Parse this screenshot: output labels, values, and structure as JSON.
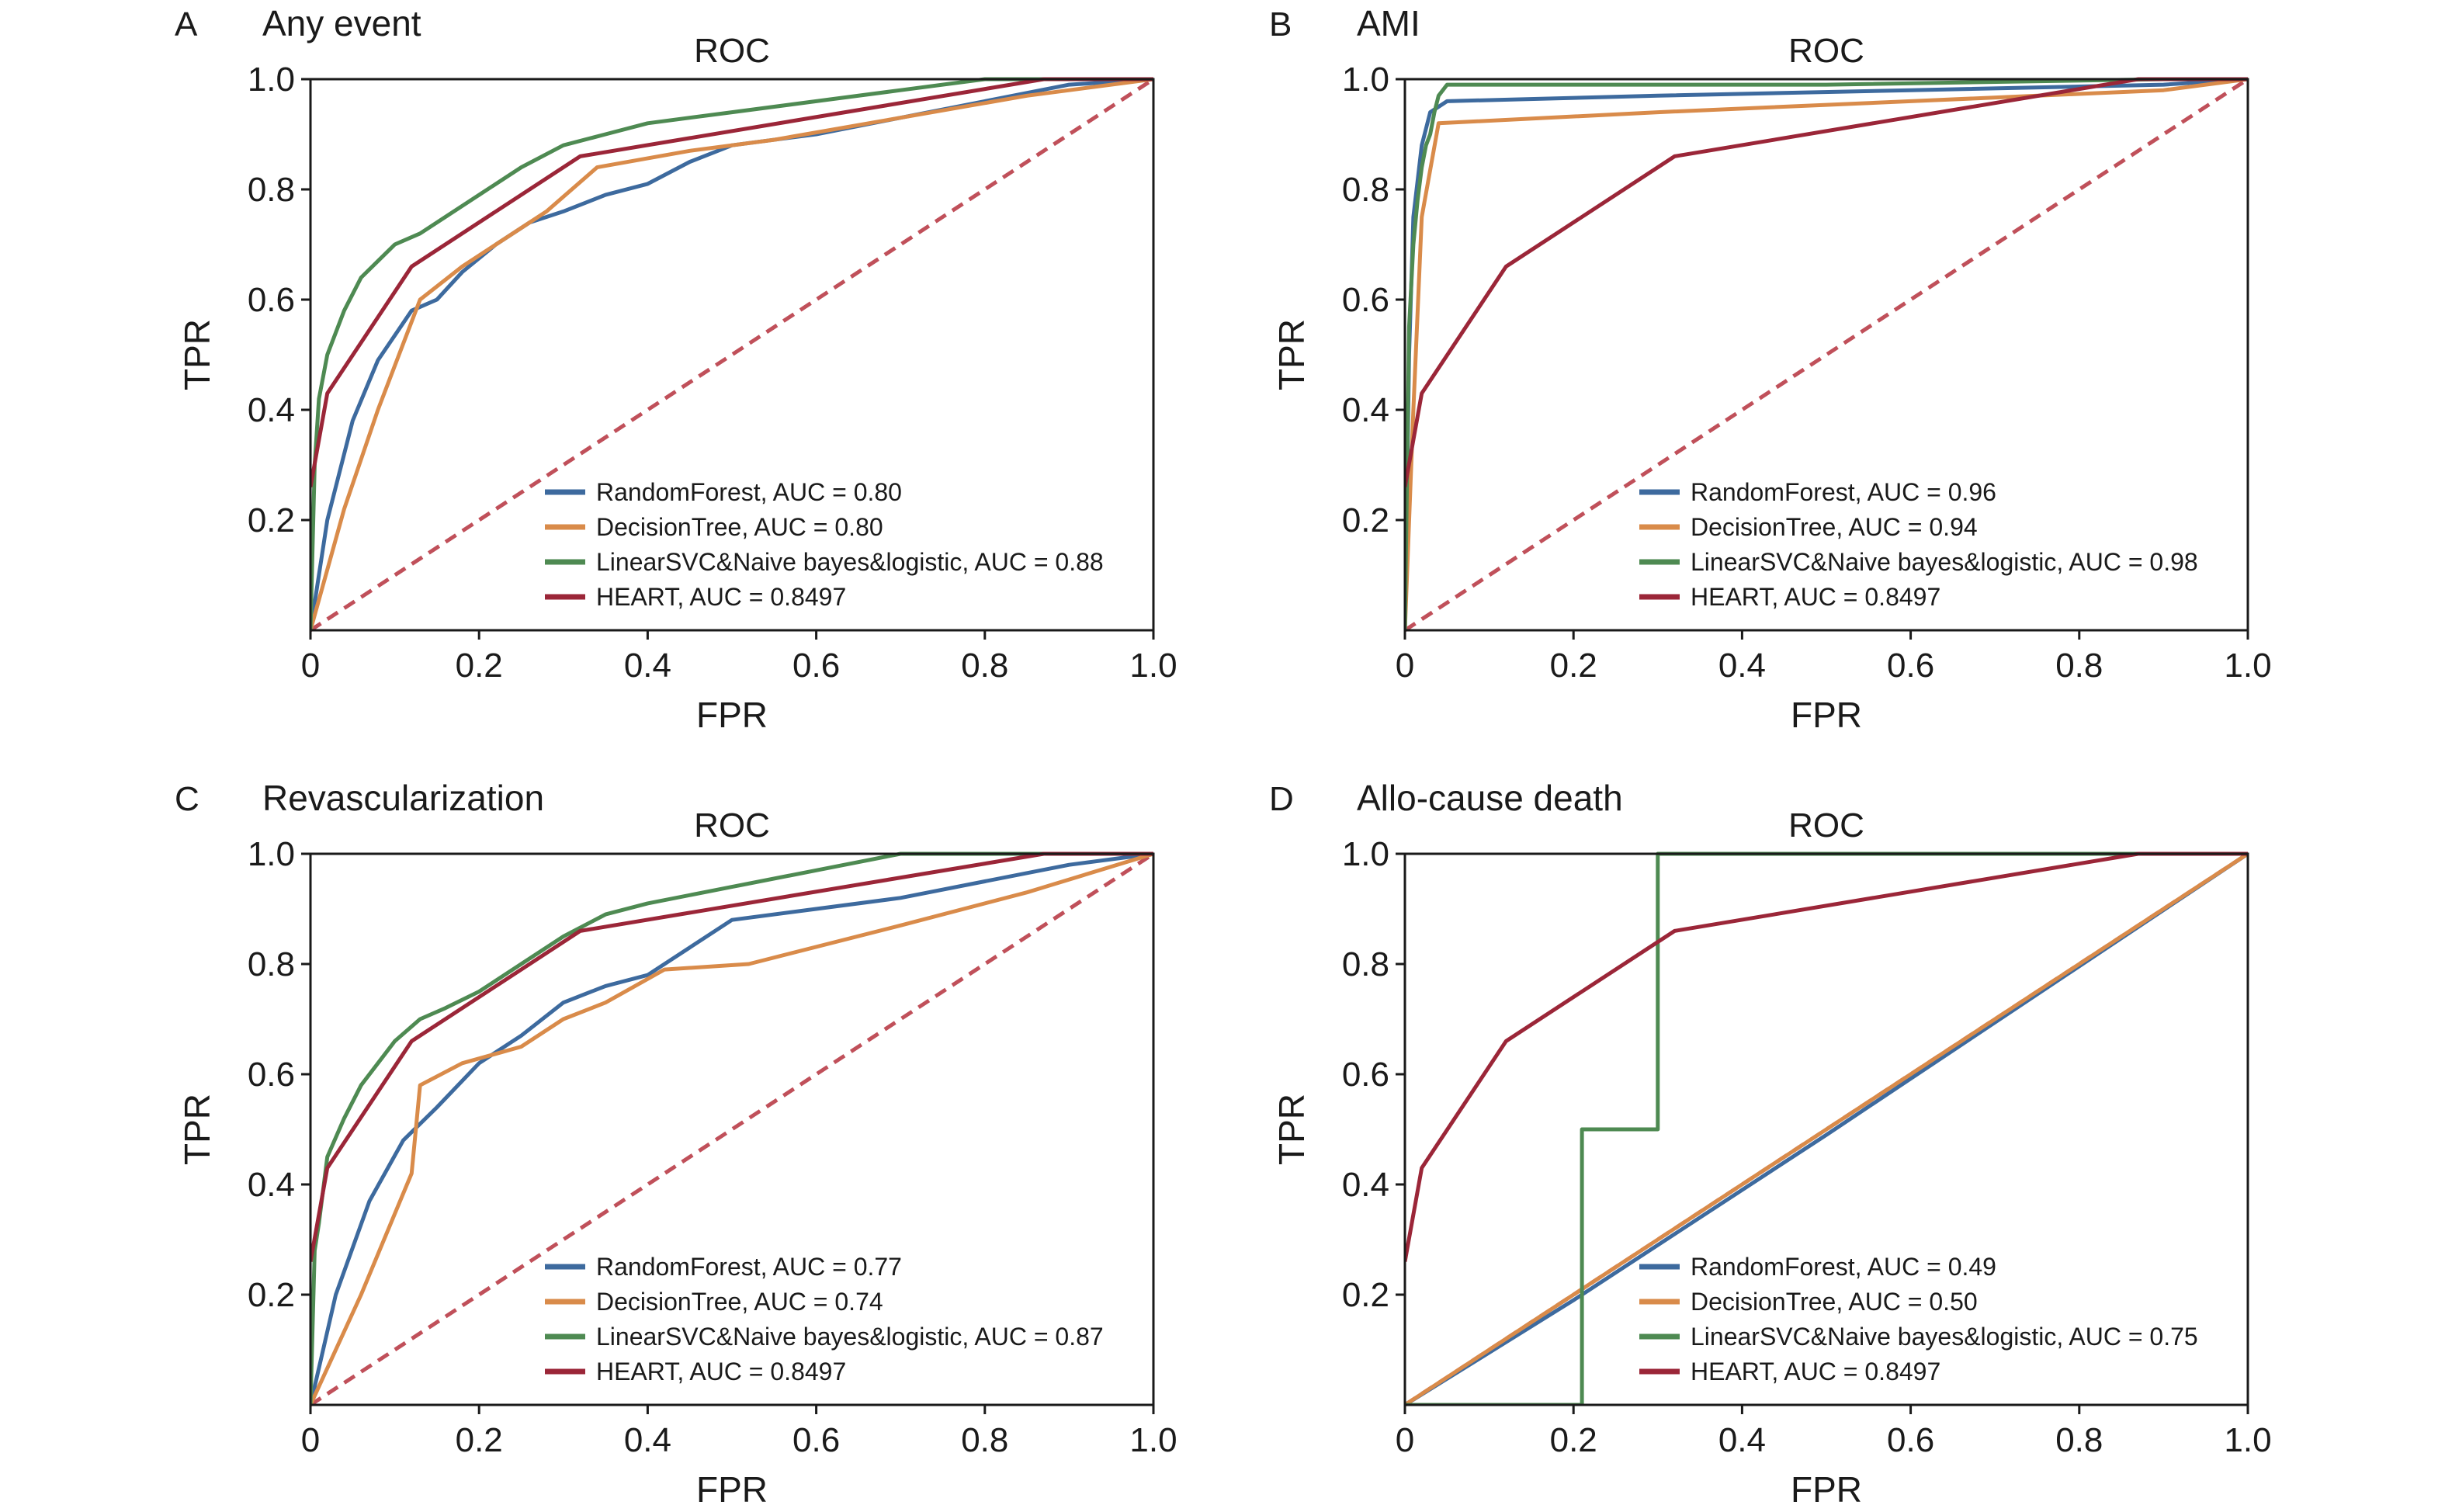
{
  "panels": [
    {
      "letter": "A",
      "heading": "Any event"
    },
    {
      "letter": "B",
      "heading": "AMI"
    },
    {
      "letter": "C",
      "heading": "Revascularization"
    },
    {
      "letter": "D",
      "heading": "Allo-cause death"
    }
  ],
  "colors": {
    "randomforest": "#3d6a9e",
    "decisiontree": "#d98b4a",
    "linearsvc": "#4e8a52",
    "heart": "#9b2638",
    "diagonal": "#c0505a",
    "axis": "#1a1a1a"
  },
  "chart_data": [
    {
      "type": "line",
      "title": "ROC",
      "xlabel": "FPR",
      "ylabel": "TPR",
      "xlim": [
        0,
        1
      ],
      "ylim": [
        0,
        1
      ],
      "xticks": [
        "0",
        "0.2",
        "0.4",
        "0.6",
        "0.8",
        "1.0"
      ],
      "yticks": [
        "0.2",
        "0.4",
        "0.6",
        "0.8",
        "1.0"
      ],
      "legend_position": "bottom-right",
      "series": [
        {
          "name": "RandomForest, AUC = 0.80",
          "color": "#3d6a9e",
          "x": [
            0,
            0.02,
            0.05,
            0.08,
            0.12,
            0.15,
            0.18,
            0.22,
            0.26,
            0.3,
            0.35,
            0.4,
            0.45,
            0.5,
            0.6,
            0.7,
            0.8,
            0.9,
            1.0
          ],
          "y": [
            0,
            0.2,
            0.38,
            0.49,
            0.58,
            0.6,
            0.65,
            0.7,
            0.74,
            0.76,
            0.79,
            0.81,
            0.85,
            0.88,
            0.9,
            0.93,
            0.96,
            0.99,
            1.0
          ]
        },
        {
          "name": "DecisionTree, AUC = 0.80",
          "color": "#d98b4a",
          "x": [
            0,
            0.04,
            0.08,
            0.13,
            0.18,
            0.22,
            0.28,
            0.34,
            0.45,
            0.55,
            0.7,
            0.85,
            1.0
          ],
          "y": [
            0,
            0.22,
            0.4,
            0.6,
            0.66,
            0.7,
            0.76,
            0.84,
            0.87,
            0.89,
            0.93,
            0.97,
            1.0
          ]
        },
        {
          "name": "LinearSVC&Naive bayes&logistic, AUC = 0.88",
          "color": "#4e8a52",
          "x": [
            0,
            0.005,
            0.01,
            0.02,
            0.04,
            0.06,
            0.08,
            0.1,
            0.13,
            0.16,
            0.2,
            0.25,
            0.3,
            0.35,
            0.4,
            0.5,
            0.6,
            0.7,
            0.8,
            0.9,
            1.0
          ],
          "y": [
            0,
            0.3,
            0.42,
            0.5,
            0.58,
            0.64,
            0.67,
            0.7,
            0.72,
            0.75,
            0.79,
            0.84,
            0.88,
            0.9,
            0.92,
            0.94,
            0.96,
            0.98,
            1.0,
            1.0,
            1.0
          ]
        },
        {
          "name": "HEART, AUC = 0.8497",
          "color": "#9b2638",
          "x": [
            0,
            0.02,
            0.12,
            0.32,
            0.87,
            1.0
          ],
          "y": [
            0.26,
            0.43,
            0.66,
            0.86,
            1.0,
            1.0
          ]
        }
      ]
    },
    {
      "type": "line",
      "title": "ROC",
      "xlabel": "FPR",
      "ylabel": "TPR",
      "xlim": [
        0,
        1
      ],
      "ylim": [
        0,
        1
      ],
      "xticks": [
        "0",
        "0.2",
        "0.4",
        "0.6",
        "0.8",
        "1.0"
      ],
      "yticks": [
        "0.2",
        "0.4",
        "0.6",
        "0.8",
        "1.0"
      ],
      "legend_position": "bottom-right",
      "series": [
        {
          "name": "RandomForest, AUC = 0.96",
          "color": "#3d6a9e",
          "x": [
            0,
            0.005,
            0.01,
            0.02,
            0.03,
            0.05,
            0.3,
            0.6,
            0.9,
            1.0
          ],
          "y": [
            0,
            0.5,
            0.75,
            0.88,
            0.94,
            0.96,
            0.97,
            0.98,
            0.99,
            1.0
          ]
        },
        {
          "name": "DecisionTree, AUC = 0.94",
          "color": "#d98b4a",
          "x": [
            0,
            0.01,
            0.02,
            0.04,
            0.3,
            0.6,
            0.9,
            1.0
          ],
          "y": [
            0,
            0.4,
            0.75,
            0.92,
            0.94,
            0.96,
            0.98,
            1.0
          ]
        },
        {
          "name": "LinearSVC&Naive bayes&logistic, AUC = 0.98",
          "color": "#4e8a52",
          "x": [
            0,
            0.005,
            0.01,
            0.015,
            0.02,
            0.025,
            0.03,
            0.035,
            0.04,
            0.05,
            0.5,
            0.9,
            1.0
          ],
          "y": [
            0,
            0.55,
            0.7,
            0.78,
            0.84,
            0.88,
            0.9,
            0.94,
            0.97,
            0.99,
            0.99,
            1.0,
            1.0
          ]
        },
        {
          "name": "HEART, AUC = 0.8497",
          "color": "#9b2638",
          "x": [
            0,
            0.02,
            0.12,
            0.32,
            0.87,
            1.0
          ],
          "y": [
            0.26,
            0.43,
            0.66,
            0.86,
            1.0,
            1.0
          ]
        }
      ]
    },
    {
      "type": "line",
      "title": "ROC",
      "xlabel": "FPR",
      "ylabel": "TPR",
      "xlim": [
        0,
        1
      ],
      "ylim": [
        0,
        1
      ],
      "xticks": [
        "0",
        "0.2",
        "0.4",
        "0.6",
        "0.8",
        "1.0"
      ],
      "yticks": [
        "0.2",
        "0.4",
        "0.6",
        "0.8",
        "1.0"
      ],
      "legend_position": "bottom-right",
      "series": [
        {
          "name": "RandomForest, AUC = 0.77",
          "color": "#3d6a9e",
          "x": [
            0,
            0.03,
            0.07,
            0.11,
            0.15,
            0.2,
            0.25,
            0.3,
            0.35,
            0.4,
            0.45,
            0.5,
            0.6,
            0.7,
            0.8,
            0.9,
            1.0
          ],
          "y": [
            0,
            0.2,
            0.37,
            0.48,
            0.54,
            0.62,
            0.67,
            0.73,
            0.76,
            0.78,
            0.83,
            0.88,
            0.9,
            0.92,
            0.95,
            0.98,
            1.0
          ]
        },
        {
          "name": "DecisionTree, AUC = 0.74",
          "color": "#d98b4a",
          "x": [
            0,
            0.06,
            0.12,
            0.13,
            0.18,
            0.25,
            0.3,
            0.35,
            0.42,
            0.52,
            0.7,
            0.85,
            1.0
          ],
          "y": [
            0,
            0.2,
            0.42,
            0.58,
            0.62,
            0.65,
            0.7,
            0.73,
            0.79,
            0.8,
            0.87,
            0.93,
            1.0
          ]
        },
        {
          "name": "LinearSVC&Naive bayes&logistic, AUC = 0.87",
          "color": "#4e8a52",
          "x": [
            0,
            0.005,
            0.01,
            0.02,
            0.04,
            0.06,
            0.08,
            0.1,
            0.13,
            0.16,
            0.2,
            0.25,
            0.3,
            0.35,
            0.4,
            0.5,
            0.6,
            0.7,
            0.8,
            1.0
          ],
          "y": [
            0,
            0.28,
            0.33,
            0.45,
            0.52,
            0.58,
            0.62,
            0.66,
            0.7,
            0.72,
            0.75,
            0.8,
            0.85,
            0.89,
            0.91,
            0.94,
            0.97,
            1.0,
            1.0,
            1.0
          ]
        },
        {
          "name": "HEART, AUC = 0.8497",
          "color": "#9b2638",
          "x": [
            0,
            0.02,
            0.12,
            0.32,
            0.87,
            1.0
          ],
          "y": [
            0.26,
            0.43,
            0.66,
            0.86,
            1.0,
            1.0
          ]
        }
      ]
    },
    {
      "type": "line",
      "title": "ROC",
      "xlabel": "FPR",
      "ylabel": "TPR",
      "xlim": [
        0,
        1
      ],
      "ylim": [
        0,
        1
      ],
      "xticks": [
        "0",
        "0.2",
        "0.4",
        "0.6",
        "0.8",
        "1.0"
      ],
      "yticks": [
        "0.2",
        "0.4",
        "0.6",
        "0.8",
        "1.0"
      ],
      "legend_position": "bottom-right",
      "series": [
        {
          "name": "RandomForest, AUC = 0.49",
          "color": "#3d6a9e",
          "x": [
            0,
            0.2,
            0.5,
            1.0
          ],
          "y": [
            0,
            0.19,
            0.49,
            1.0
          ]
        },
        {
          "name": "DecisionTree, AUC = 0.50",
          "color": "#d98b4a",
          "x": [
            0,
            1.0
          ],
          "y": [
            0,
            1.0
          ]
        },
        {
          "name": "LinearSVC&Naive bayes&logistic, AUC = 0.75",
          "color": "#4e8a52",
          "x": [
            0,
            0.21,
            0.21,
            0.3,
            0.3,
            1.0
          ],
          "y": [
            0,
            0,
            0.5,
            0.5,
            1.0,
            1.0
          ]
        },
        {
          "name": "HEART, AUC = 0.8497",
          "color": "#9b2638",
          "x": [
            0,
            0.02,
            0.12,
            0.32,
            0.87,
            1.0
          ],
          "y": [
            0.26,
            0.43,
            0.66,
            0.86,
            1.0,
            1.0
          ]
        }
      ]
    }
  ]
}
